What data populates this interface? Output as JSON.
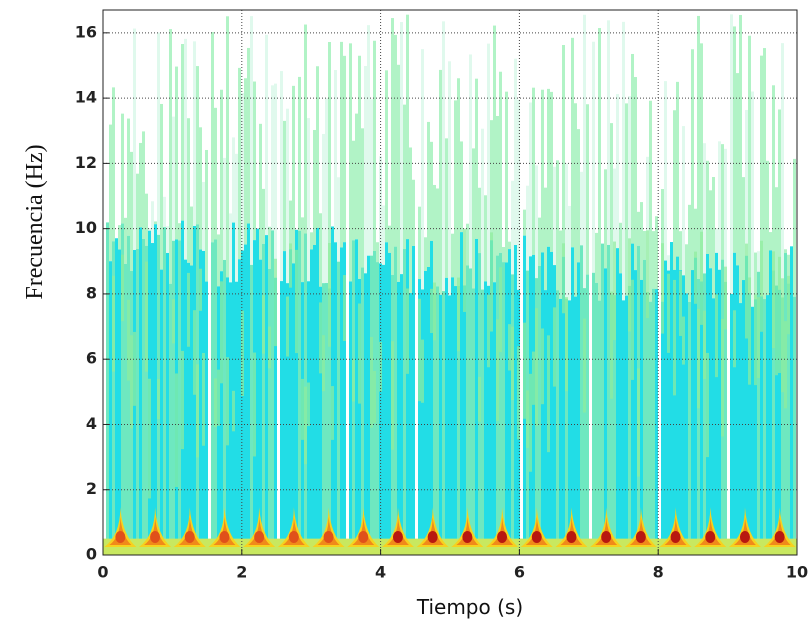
{
  "chart_data": {
    "type": "spectrogram",
    "xlabel": "Tiempo (s)",
    "ylabel": "Frecuencia (Hz)",
    "xlim": [
      0,
      10
    ],
    "ylim": [
      0,
      16.7
    ],
    "xticks": [
      0,
      2,
      4,
      6,
      8,
      10
    ],
    "yticks": [
      0,
      2,
      4,
      6,
      8,
      10,
      12,
      14,
      16
    ],
    "grid": true
  }
}
